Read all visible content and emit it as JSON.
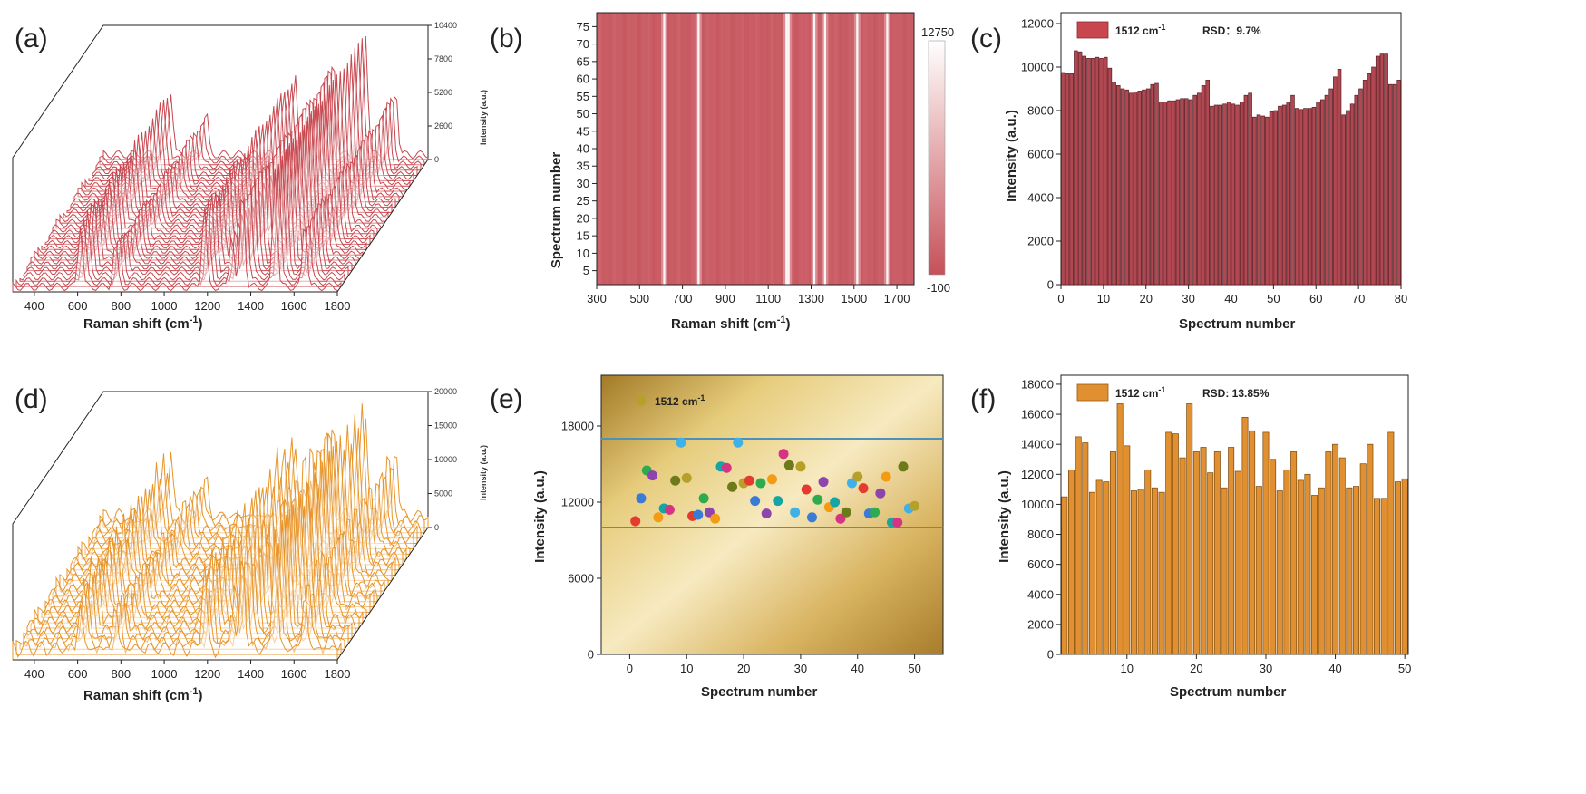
{
  "chart_data": [
    {
      "panel": "(a)",
      "type": "area",
      "view": "3d-waterfall",
      "color": "#c8474f",
      "xlabel": "Raman shift (cm-1)",
      "xticks": [
        400,
        600,
        800,
        1000,
        1200,
        1400,
        1600,
        1800
      ],
      "zlabel": "Intensity (a.u.)",
      "zticks": [
        "0",
        "2600",
        "5200",
        "7800",
        "10400"
      ],
      "peaks_cm1": [
        612,
        774,
        1185,
        1312,
        1362,
        1512,
        1650
      ]
    },
    {
      "panel": "(b)",
      "type": "heatmap",
      "xlabel": "Raman shift (cm-1)",
      "xticks": [
        300,
        500,
        700,
        900,
        1100,
        1300,
        1500,
        1700
      ],
      "ylabel": "Spectrum number",
      "yticks": [
        5,
        10,
        15,
        20,
        25,
        30,
        35,
        40,
        45,
        50,
        55,
        60,
        65,
        70,
        75
      ],
      "xlim": [
        300,
        1780
      ],
      "ylim": [
        1,
        79
      ],
      "colorbar": {
        "max": "12750",
        "min": "-100"
      },
      "bright_bands_cm1": [
        612,
        774,
        1185,
        1312,
        1362,
        1512,
        1650
      ]
    },
    {
      "panel": "(c)",
      "type": "bar",
      "color": "#b04852",
      "legend": "1512 cm-1",
      "rsd": "RSD：9.7%",
      "xlabel": "Spectrum number",
      "ylabel": "Intensity (a.u.)",
      "xticks": [
        0,
        10,
        20,
        30,
        40,
        50,
        60,
        70,
        80
      ],
      "yticks": [
        0,
        2000,
        4000,
        6000,
        8000,
        10000,
        12000
      ],
      "xlim": [
        0,
        80
      ],
      "ylim": [
        0,
        12500
      ],
      "values": [
        9750,
        9700,
        9700,
        10750,
        10700,
        10500,
        10400,
        10400,
        10450,
        10400,
        10450,
        9950,
        9300,
        9150,
        9000,
        8950,
        8800,
        8850,
        8900,
        8950,
        9000,
        9200,
        9250,
        8400,
        8400,
        8450,
        8450,
        8500,
        8550,
        8550,
        8500,
        8700,
        8800,
        9150,
        9400,
        8200,
        8250,
        8250,
        8300,
        8400,
        8300,
        8250,
        8400,
        8700,
        8800,
        7700,
        7800,
        7750,
        7700,
        7950,
        8000,
        8200,
        8250,
        8400,
        8700,
        8100,
        8050,
        8100,
        8100,
        8150,
        8400,
        8500,
        8700,
        9000,
        9550,
        9900,
        7800,
        8000,
        8300,
        8700,
        9000,
        9400,
        9700,
        10000,
        10500,
        10600,
        10600,
        9200,
        9200,
        9400
      ]
    },
    {
      "panel": "(d)",
      "type": "area",
      "view": "3d-waterfall",
      "color": "#e8952a",
      "xlabel": "Raman shift (cm-1)",
      "xticks": [
        400,
        600,
        800,
        1000,
        1200,
        1400,
        1600,
        1800
      ],
      "zlabel": "Intensity (a.u.)",
      "zticks": [
        "0",
        "5000",
        "10000",
        "15000",
        "20000"
      ],
      "peaks_cm1": [
        612,
        774,
        1185,
        1312,
        1362,
        1512,
        1650
      ]
    },
    {
      "panel": "(e)",
      "type": "scatter",
      "legend": "1512 cm-1",
      "xlabel": "Spectrum number",
      "ylabel": "Intensity (a.u.)",
      "xticks": [
        0,
        10,
        20,
        30,
        40,
        50
      ],
      "yticks": [
        0,
        6000,
        12000,
        18000
      ],
      "xlim": [
        -5,
        55
      ],
      "ylim": [
        0,
        22000
      ],
      "hlines": [
        17000,
        10000
      ],
      "x": [
        1,
        2,
        3,
        4,
        5,
        6,
        7,
        8,
        9,
        10,
        11,
        12,
        13,
        14,
        15,
        16,
        17,
        18,
        19,
        20,
        21,
        22,
        23,
        24,
        25,
        26,
        27,
        28,
        29,
        30,
        31,
        32,
        33,
        34,
        35,
        36,
        37,
        38,
        39,
        40,
        41,
        42,
        43,
        44,
        45,
        46,
        47,
        48,
        49,
        50
      ],
      "values": [
        10500,
        12300,
        14500,
        14100,
        10800,
        11500,
        11400,
        13700,
        16700,
        13900,
        10900,
        11000,
        12300,
        11200,
        10700,
        14800,
        14700,
        13200,
        16700,
        13500,
        13700,
        12100,
        13500,
        11100,
        13800,
        12100,
        15800,
        14900,
        11200,
        14800,
        13000,
        10800,
        12200,
        13600,
        11600,
        12000,
        10700,
        11200,
        13500,
        14000,
        13100,
        11100,
        11200,
        12700,
        14000,
        10400,
        10400,
        14800,
        11500,
        11700
      ]
    },
    {
      "panel": "(f)",
      "type": "bar",
      "color": "#e09030",
      "legend": "1512 cm-1",
      "rsd": "RSD: 13.85%",
      "xlabel": "Spectrum number",
      "ylabel": "Intensity (a.u.)",
      "xticks": [
        10,
        20,
        30,
        40,
        50
      ],
      "yticks": [
        0,
        2000,
        4000,
        6000,
        8000,
        10000,
        12000,
        14000,
        16000,
        18000
      ],
      "xlim": [
        0.5,
        50.5
      ],
      "ylim": [
        0,
        18600
      ],
      "values": [
        10500,
        12300,
        14500,
        14100,
        10800,
        11600,
        11500,
        13500,
        16700,
        13900,
        10900,
        11000,
        12300,
        11100,
        10800,
        14800,
        14700,
        13100,
        16700,
        13500,
        13800,
        12100,
        13500,
        11100,
        13800,
        12200,
        15800,
        14900,
        11200,
        14800,
        13000,
        10900,
        12300,
        13500,
        11600,
        12000,
        10600,
        11100,
        13500,
        14000,
        13100,
        11100,
        11200,
        12700,
        14000,
        10400,
        10400,
        14800,
        11500,
        11700
      ]
    }
  ],
  "panel_labels": [
    "(a)",
    "(b)",
    "(c)",
    "(d)",
    "(e)",
    "(f)"
  ],
  "text": {
    "a_xlabel": "Raman shift (cm",
    "a_xlabel_sup": "-1",
    "a_zlabel": "Intensity (a.u.)",
    "b_xlabel": "Raman shift (cm",
    "b_xlabel_sup": "-1",
    "b_ylabel": "Spectrum number",
    "c_legend": "1512 cm",
    "c_legend_sup": "-1",
    "c_rsd": "RSD：9.7%",
    "c_xlabel": "Spectrum number",
    "c_ylabel": "Intensity (a.u.)",
    "d_xlabel": "Raman shift (cm",
    "d_xlabel_sup": "-1",
    "d_zlabel": "Intensity (a.u.)",
    "e_legend": "1512 cm",
    "e_legend_sup": "-1",
    "e_xlabel": "Spectrum number",
    "e_ylabel": "Intensity (a.u.)",
    "f_legend": "1512 cm",
    "f_legend_sup": "-1",
    "f_rsd": "RSD: 13.85%",
    "f_xlabel": "Spectrum number",
    "f_ylabel": "Intensity (a.u.)",
    "b_cbar_max": "12750",
    "b_cbar_min": "-100"
  },
  "colors": {
    "red": "#c8474f",
    "red_dark": "#b04852",
    "orange": "#e8952a",
    "orange_bar": "#e09030",
    "heat_base": "#c5515a",
    "line_blue": "#4d90b8"
  }
}
